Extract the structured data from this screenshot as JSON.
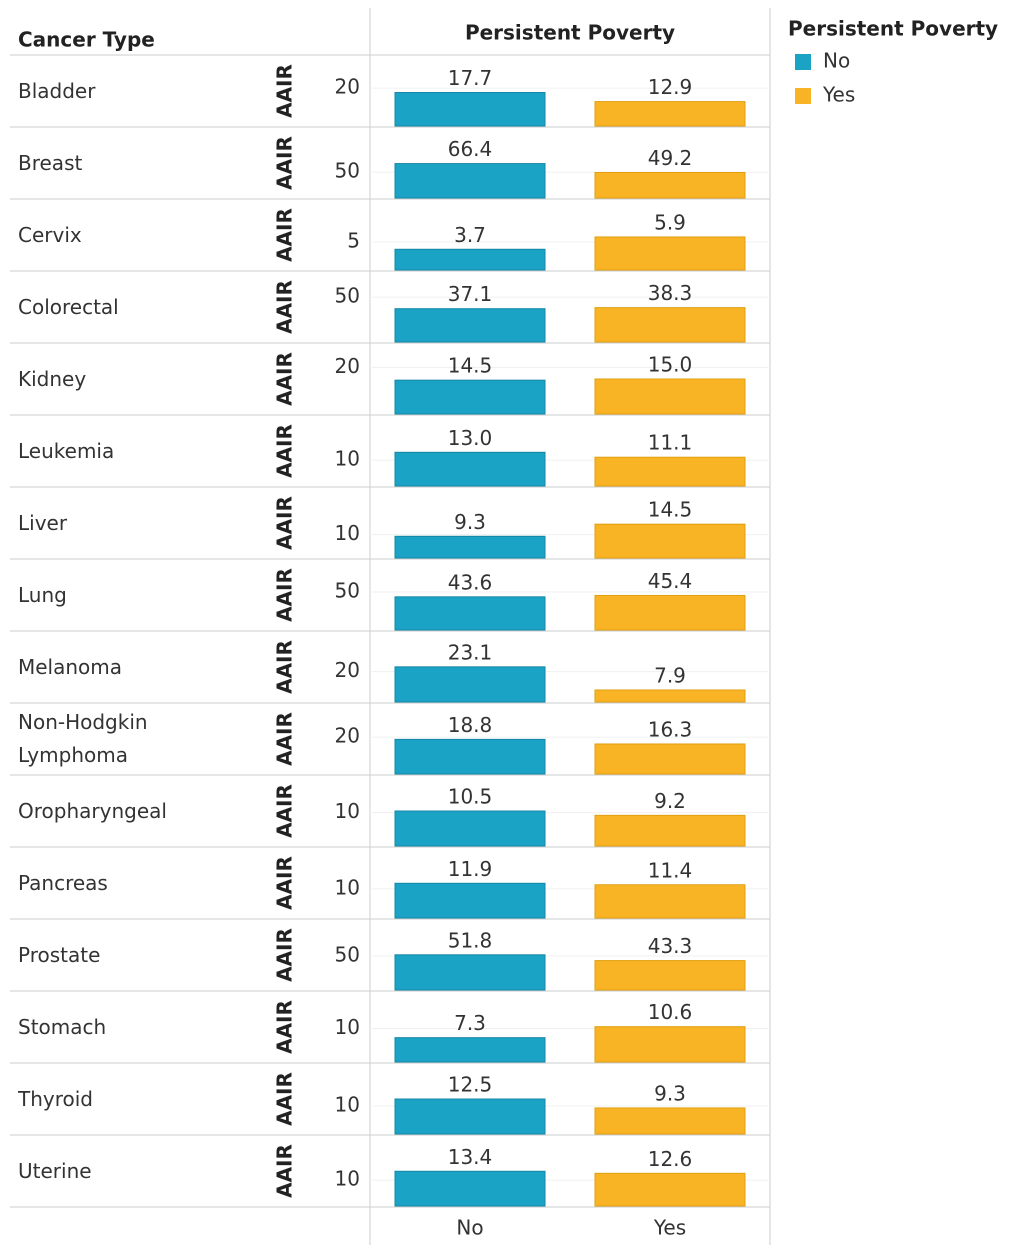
{
  "row_header": "Cancer Type",
  "column_header": "Persistent Poverty",
  "categories": [
    "No",
    "Yes"
  ],
  "legend": {
    "title": "Persistent Poverty",
    "items": [
      {
        "name": "No",
        "color": "#1ba3c6"
      },
      {
        "name": "Yes",
        "color": "#f8b425"
      }
    ]
  },
  "chart_data": [
    {
      "type": "bar",
      "label": "Bladder",
      "ylabel": "AAIR",
      "values": [
        17.7,
        12.9
      ],
      "ylim": [
        0,
        37
      ],
      "yticks": [
        20
      ]
    },
    {
      "type": "bar",
      "label": "Breast",
      "ylabel": "AAIR",
      "values": [
        66.4,
        49.2
      ],
      "ylim": [
        0,
        135
      ],
      "yticks": [
        50
      ]
    },
    {
      "type": "bar",
      "label": "Cervix",
      "ylabel": "AAIR",
      "values": [
        3.7,
        5.9
      ],
      "ylim": [
        0,
        12.5
      ],
      "yticks": [
        5
      ]
    },
    {
      "type": "bar",
      "label": "Colorectal",
      "ylabel": "AAIR",
      "values": [
        37.1,
        38.3
      ],
      "ylim": [
        0,
        78
      ],
      "yticks": [
        50
      ]
    },
    {
      "type": "bar",
      "label": "Kidney",
      "ylabel": "AAIR",
      "values": [
        14.5,
        15
      ],
      "value_labels": [
        "14.5",
        "15.0"
      ],
      "ylim": [
        0,
        30
      ],
      "yticks": [
        20
      ]
    },
    {
      "type": "bar",
      "label": "Leukemia",
      "ylabel": "AAIR",
      "values": [
        13,
        11.1
      ],
      "value_labels": [
        "13.0",
        "11.1"
      ],
      "ylim": [
        0,
        27
      ],
      "yticks": [
        10
      ]
    },
    {
      "type": "bar",
      "label": "Liver",
      "ylabel": "AAIR",
      "values": [
        9.3,
        14.5
      ],
      "ylim": [
        0,
        30
      ],
      "yticks": [
        10
      ]
    },
    {
      "type": "bar",
      "label": "Lung",
      "ylabel": "AAIR",
      "values": [
        43.6,
        45.4
      ],
      "ylim": [
        0,
        92
      ],
      "yticks": [
        50
      ]
    },
    {
      "type": "bar",
      "label": "Melanoma",
      "ylabel": "AAIR",
      "values": [
        23.1,
        7.9
      ],
      "ylim": [
        0,
        46
      ],
      "yticks": [
        20
      ]
    },
    {
      "type": "bar",
      "label": "Non-Hodgkin Lymphoma",
      "ylabel": "AAIR",
      "values": [
        18.8,
        16.3
      ],
      "ylim": [
        0,
        38
      ],
      "yticks": [
        20
      ]
    },
    {
      "type": "bar",
      "label": "Oropharyngeal",
      "ylabel": "AAIR",
      "values": [
        10.5,
        9.2
      ],
      "ylim": [
        0,
        21
      ],
      "yticks": [
        10
      ]
    },
    {
      "type": "bar",
      "label": "Pancreas",
      "ylabel": "AAIR",
      "values": [
        11.9,
        11.4
      ],
      "ylim": [
        0,
        24
      ],
      "yticks": [
        10
      ]
    },
    {
      "type": "bar",
      "label": "Prostate",
      "ylabel": "AAIR",
      "values": [
        51.8,
        43.3
      ],
      "ylim": [
        0,
        103
      ],
      "yticks": [
        50
      ]
    },
    {
      "type": "bar",
      "label": "Stomach",
      "ylabel": "AAIR",
      "values": [
        7.3,
        10.6
      ],
      "ylim": [
        0,
        21
      ],
      "yticks": [
        10
      ]
    },
    {
      "type": "bar",
      "label": "Thyroid",
      "ylabel": "AAIR",
      "values": [
        12.5,
        9.3
      ],
      "ylim": [
        0,
        25
      ],
      "yticks": [
        10
      ]
    },
    {
      "type": "bar",
      "label": "Uterine",
      "ylabel": "AAIR",
      "values": [
        13.4,
        12.6
      ],
      "ylim": [
        0,
        27
      ],
      "yticks": [
        10
      ]
    }
  ]
}
